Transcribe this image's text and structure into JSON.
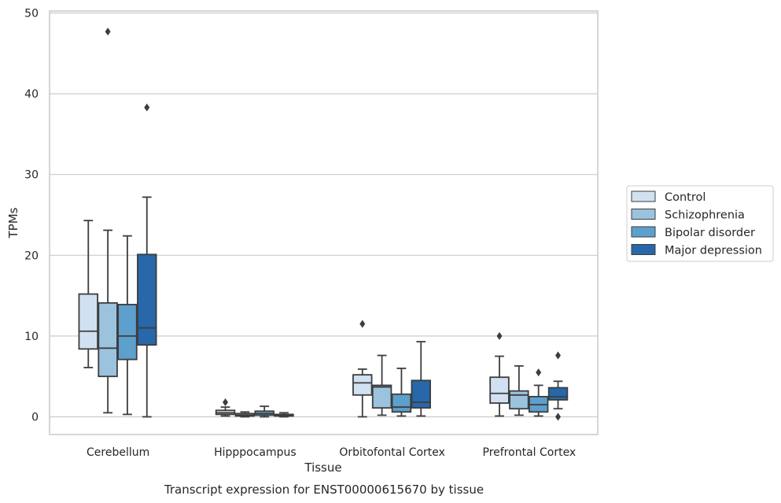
{
  "chart_data": {
    "type": "box",
    "title": "",
    "caption": "Transcript expression for ENST00000615670 by tissue",
    "xlabel": "Tissue",
    "ylabel": "TPMs",
    "ylim": [
      -2.2,
      50.2
    ],
    "yticks": [
      0,
      10,
      20,
      30,
      40,
      50
    ],
    "grid": "horizontal",
    "legend_position": "center-right",
    "categories": [
      "Cerebellum",
      "Hipppocampus",
      "Orbitofontal Cortex",
      "Prefrontal Cortex"
    ],
    "series": [
      {
        "name": "Control",
        "color": "#d2e1f1",
        "boxes": [
          {
            "whislo": 6.1,
            "q1": 8.4,
            "med": 10.6,
            "q3": 15.2,
            "whishi": 24.3,
            "fliers": []
          },
          {
            "whislo": 0.1,
            "q1": 0.3,
            "med": 0.5,
            "q3": 0.8,
            "whishi": 1.2,
            "fliers": [
              1.8
            ]
          },
          {
            "whislo": 0.0,
            "q1": 2.7,
            "med": 4.2,
            "q3": 5.2,
            "whishi": 5.9,
            "fliers": [
              11.5
            ]
          },
          {
            "whislo": 0.1,
            "q1": 1.7,
            "med": 2.9,
            "q3": 4.9,
            "whishi": 7.5,
            "fliers": [
              10.0
            ]
          }
        ]
      },
      {
        "name": "Schizophrenia",
        "color": "#9cc3dd",
        "boxes": [
          {
            "whislo": 0.5,
            "q1": 5.0,
            "med": 8.5,
            "q3": 14.1,
            "whishi": 23.1,
            "fliers": [
              47.7
            ]
          },
          {
            "whislo": 0.0,
            "q1": 0.1,
            "med": 0.2,
            "q3": 0.4,
            "whishi": 0.6,
            "fliers": []
          },
          {
            "whislo": 0.2,
            "q1": 1.1,
            "med": 3.7,
            "q3": 3.9,
            "whishi": 7.6,
            "fliers": []
          },
          {
            "whislo": 0.2,
            "q1": 1.0,
            "med": 2.7,
            "q3": 3.2,
            "whishi": 6.3,
            "fliers": []
          }
        ]
      },
      {
        "name": "Bipolar disorder",
        "color": "#5d9fcd",
        "boxes": [
          {
            "whislo": 0.3,
            "q1": 7.1,
            "med": 10.0,
            "q3": 13.9,
            "whishi": 22.4,
            "fliers": []
          },
          {
            "whislo": 0.0,
            "q1": 0.2,
            "med": 0.4,
            "q3": 0.7,
            "whishi": 1.3,
            "fliers": []
          },
          {
            "whislo": 0.1,
            "q1": 0.6,
            "med": 1.2,
            "q3": 2.8,
            "whishi": 6.0,
            "fliers": []
          },
          {
            "whislo": 0.1,
            "q1": 0.6,
            "med": 1.5,
            "q3": 2.5,
            "whishi": 3.9,
            "fliers": [
              5.5
            ]
          }
        ]
      },
      {
        "name": "Major depression",
        "color": "#2767aa",
        "boxes": [
          {
            "whislo": 0.0,
            "q1": 8.9,
            "med": 11.0,
            "q3": 20.1,
            "whishi": 27.2,
            "fliers": [
              38.3
            ]
          },
          {
            "whislo": 0.0,
            "q1": 0.1,
            "med": 0.2,
            "q3": 0.3,
            "whishi": 0.5,
            "fliers": []
          },
          {
            "whislo": 0.1,
            "q1": 1.1,
            "med": 1.8,
            "q3": 4.5,
            "whishi": 9.3,
            "fliers": []
          },
          {
            "whislo": 1.0,
            "q1": 2.1,
            "med": 2.5,
            "q3": 3.6,
            "whishi": 4.4,
            "fliers": [
              7.6,
              0.0
            ]
          }
        ]
      }
    ]
  }
}
